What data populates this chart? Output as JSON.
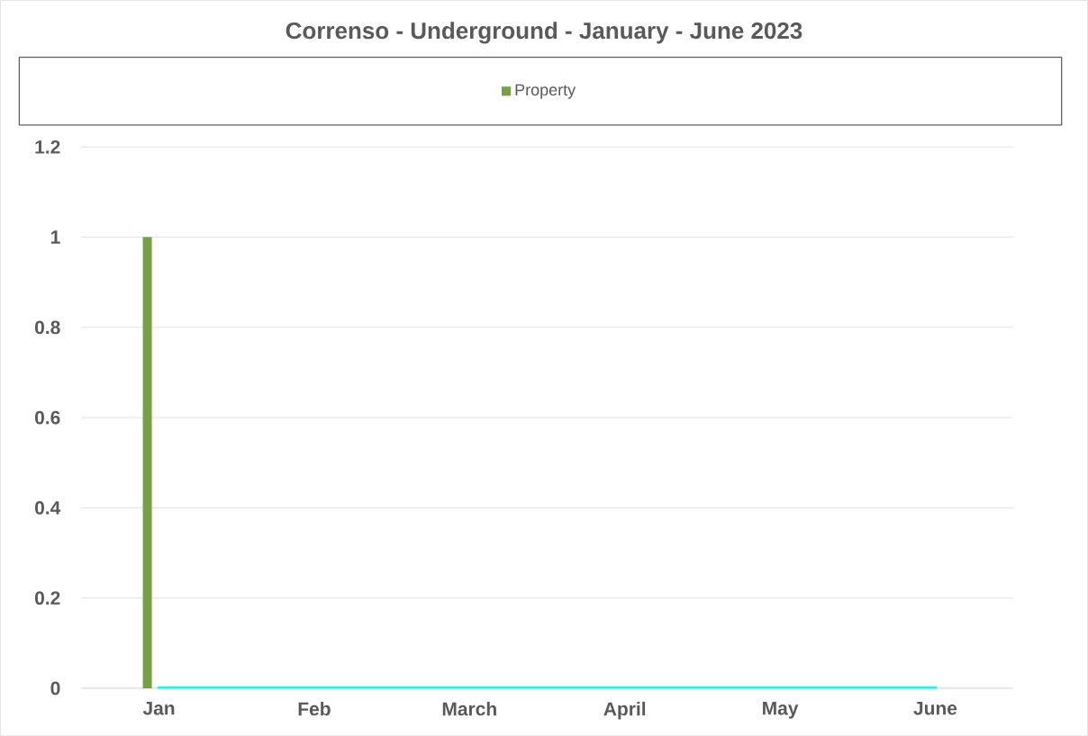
{
  "chart_data": {
    "type": "bar",
    "title": "Correnso - Underground - January - June 2023",
    "categories": [
      "Jan",
      "Feb",
      "March",
      "April",
      "May",
      "June"
    ],
    "series": [
      {
        "name": "Property",
        "color": "#76a046",
        "values": [
          1,
          0,
          0,
          0,
          0,
          0
        ]
      },
      {
        "type": "line",
        "color": "#00ffff",
        "values": [
          0,
          0,
          0,
          0,
          0,
          0
        ]
      }
    ],
    "ylim": [
      0,
      1.2
    ],
    "yticks": [
      0,
      0.2,
      0.4,
      0.6,
      0.8,
      1,
      1.2
    ],
    "grid": "y",
    "legend": "top"
  }
}
